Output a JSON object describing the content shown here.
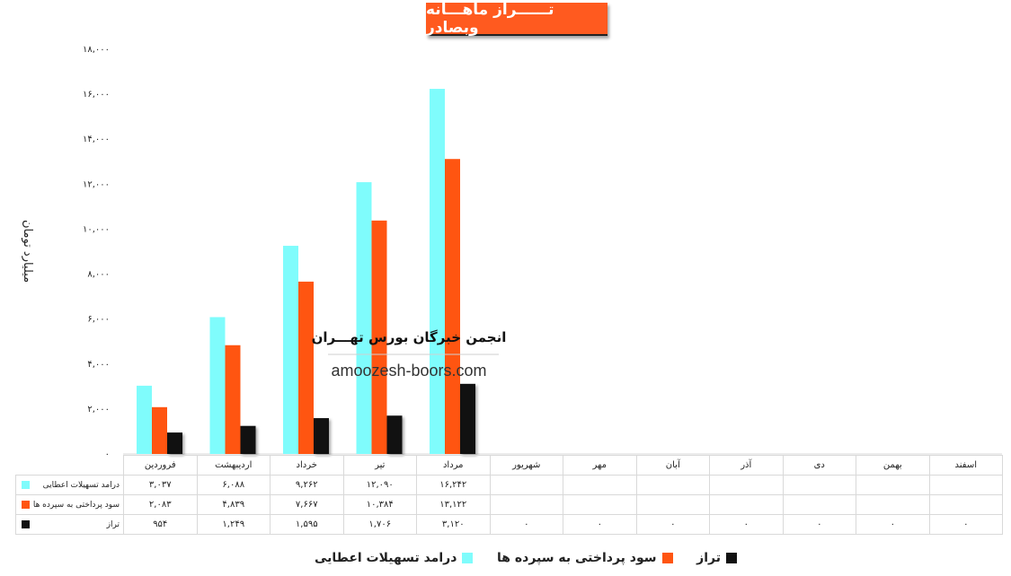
{
  "header": {
    "title": "تــــــراز ماهـــانه وبصادر"
  },
  "colors": {
    "series1": "#7ffcfc",
    "series2": "#ff5511",
    "series3": "#111111",
    "title_bg": "#ff5a1f"
  },
  "watermark": {
    "title": "انجمن خبرگان بورس تهـــران",
    "url": "amoozesh-boors.com"
  },
  "chart_data": {
    "type": "bar",
    "ylabel": "میلیارد تومان",
    "ylim": [
      0,
      18000
    ],
    "ytick_values": [
      0,
      2000,
      4000,
      6000,
      8000,
      10000,
      12000,
      14000,
      16000,
      18000
    ],
    "ytick_labels": [
      "۰",
      "۲,۰۰۰",
      "۴,۰۰۰",
      "۶,۰۰۰",
      "۸,۰۰۰",
      "۱۰,۰۰۰",
      "۱۲,۰۰۰",
      "۱۴,۰۰۰",
      "۱۶,۰۰۰",
      "۱۸,۰۰۰"
    ],
    "categories": [
      "فروردین",
      "اردیبهشت",
      "خرداد",
      "تیر",
      "مرداد",
      "شهریور",
      "مهر",
      "آبان",
      "آذر",
      "دی",
      "بهمن",
      "اسفند"
    ],
    "series": [
      {
        "name": "درامد تسهیلات اعطایی",
        "values": [
          3037,
          6088,
          9262,
          12090,
          16242,
          null,
          null,
          null,
          null,
          null,
          null,
          null
        ],
        "labels": [
          "۳,۰۳۷",
          "۶,۰۸۸",
          "۹,۲۶۲",
          "۱۲,۰۹۰",
          "۱۶,۲۴۲",
          "",
          "",
          "",
          "",
          "",
          "",
          ""
        ]
      },
      {
        "name": "سود پرداختی به سپرده ها",
        "values": [
          2083,
          4839,
          7667,
          10384,
          13122,
          null,
          null,
          null,
          null,
          null,
          null,
          null
        ],
        "labels": [
          "۲,۰۸۳",
          "۴,۸۳۹",
          "۷,۶۶۷",
          "۱۰,۳۸۴",
          "۱۳,۱۲۲",
          "",
          "",
          "",
          "",
          "",
          "",
          ""
        ]
      },
      {
        "name": "تراز",
        "values": [
          954,
          1249,
          1595,
          1706,
          3120,
          0,
          0,
          0,
          0,
          0,
          0,
          0
        ],
        "labels": [
          "۹۵۴",
          "۱,۲۴۹",
          "۱,۵۹۵",
          "۱,۷۰۶",
          "۳,۱۲۰",
          "۰",
          "۰",
          "۰",
          "۰",
          "۰",
          "۰",
          "۰"
        ]
      }
    ],
    "legend": "bottom"
  }
}
